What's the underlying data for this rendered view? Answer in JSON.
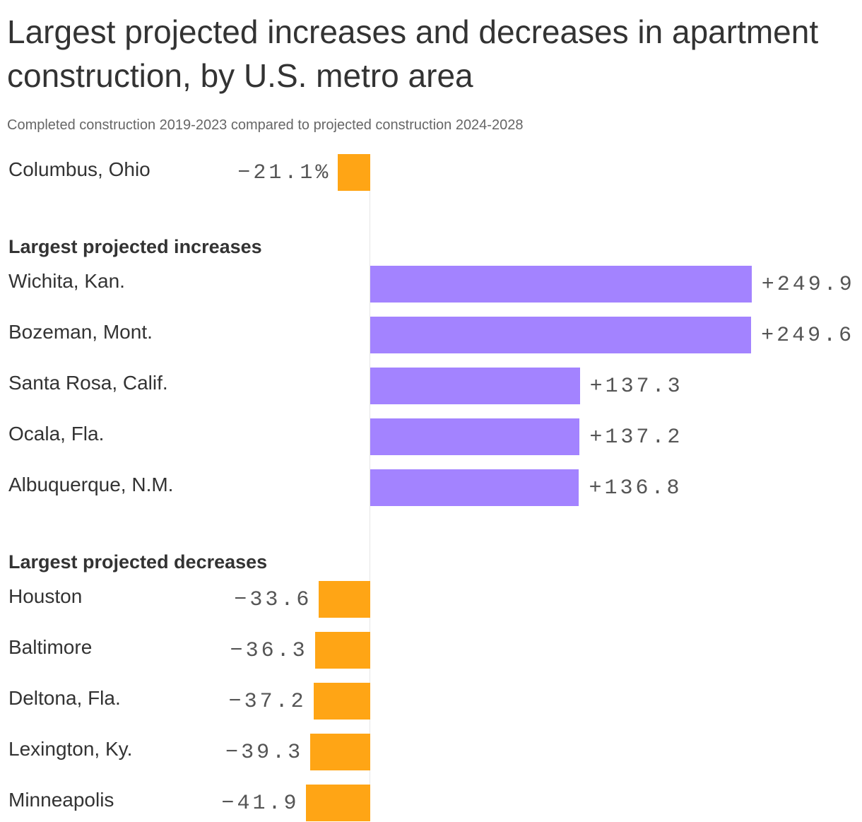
{
  "chart_data": {
    "type": "bar",
    "orientation": "horizontal",
    "title": "Largest projected increases and decreases in apartment construction, by U.S. metro area",
    "subtitle": "Completed construction 2019-2023 compared to projected construction 2024-2028",
    "unit": "%",
    "colors": {
      "increase": "#a383ff",
      "decrease": "#ffa515"
    },
    "groups": [
      {
        "heading": "",
        "items": [
          {
            "label": "Columbus, Ohio",
            "value": -21.1,
            "display": "−21.1%"
          }
        ]
      },
      {
        "heading": "Largest projected increases",
        "items": [
          {
            "label": "Wichita, Kan.",
            "value": 249.9,
            "display": "+249.9"
          },
          {
            "label": "Bozeman, Mont.",
            "value": 249.6,
            "display": "+249.6"
          },
          {
            "label": "Santa Rosa, Calif.",
            "value": 137.3,
            "display": "+137.3"
          },
          {
            "label": "Ocala, Fla.",
            "value": 137.2,
            "display": "+137.2"
          },
          {
            "label": "Albuquerque, N.M.",
            "value": 136.8,
            "display": "+136.8"
          }
        ]
      },
      {
        "heading": "Largest projected decreases",
        "items": [
          {
            "label": "Houston",
            "value": -33.6,
            "display": "−33.6"
          },
          {
            "label": "Baltimore",
            "value": -36.3,
            "display": "−36.3"
          },
          {
            "label": "Deltona, Fla.",
            "value": -37.2,
            "display": "−37.2"
          },
          {
            "label": "Lexington, Ky.",
            "value": -39.3,
            "display": "−39.3"
          },
          {
            "label": "Minneapolis",
            "value": -41.9,
            "display": "−41.9"
          }
        ]
      }
    ]
  }
}
